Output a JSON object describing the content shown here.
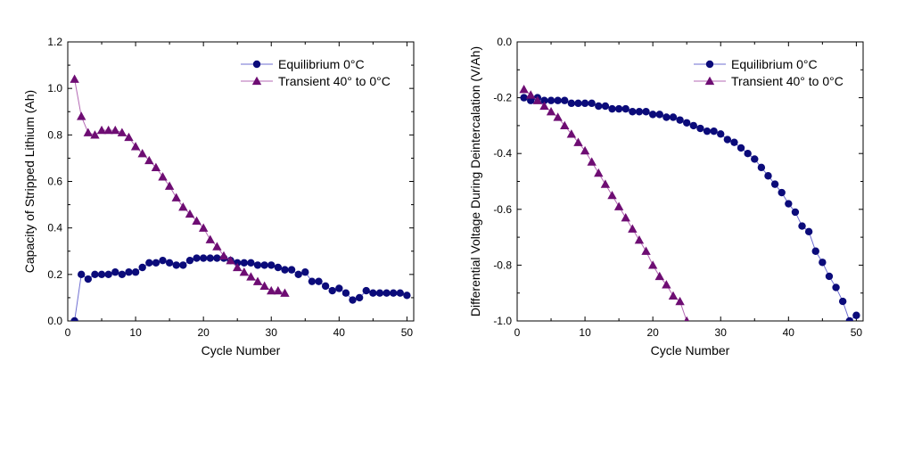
{
  "colors": {
    "equilibrium_line": "#6f6fd2",
    "equilibrium_marker": "#0b0b7a",
    "transient_line": "#b46ab4",
    "transient_marker": "#6e0d73"
  },
  "chart_data": [
    {
      "type": "line",
      "xlabel": "Cycle Number",
      "ylabel": "Capacity of Stripped Lithium (Ah)",
      "xlim": [
        0,
        51
      ],
      "ylim": [
        0.0,
        1.2
      ],
      "xticks": [
        0,
        10,
        20,
        30,
        40,
        50
      ],
      "xtick_labels": [
        "0",
        "10",
        "20",
        "30",
        "40",
        "50"
      ],
      "yticks": [
        0.0,
        0.2,
        0.4,
        0.6,
        0.8,
        1.0,
        1.2
      ],
      "ytick_labels": [
        "0.0",
        "0.2",
        "0.4",
        "0.6",
        "0.8",
        "1.0",
        "1.2"
      ],
      "grid": false,
      "legend_position": "top-right",
      "series": [
        {
          "name": "Equilibrium 0°C",
          "marker": "circle",
          "x": [
            1,
            2,
            3,
            4,
            5,
            6,
            7,
            8,
            9,
            10,
            11,
            12,
            13,
            14,
            15,
            16,
            17,
            18,
            19,
            20,
            21,
            22,
            23,
            24,
            25,
            26,
            27,
            28,
            29,
            30,
            31,
            32,
            33,
            34,
            35,
            36,
            37,
            38,
            39,
            40,
            41,
            42,
            43,
            44,
            45,
            46,
            47,
            48,
            49,
            50
          ],
          "y": [
            0.0,
            0.2,
            0.18,
            0.2,
            0.2,
            0.2,
            0.21,
            0.2,
            0.21,
            0.21,
            0.23,
            0.25,
            0.25,
            0.26,
            0.25,
            0.24,
            0.24,
            0.26,
            0.27,
            0.27,
            0.27,
            0.27,
            0.27,
            0.26,
            0.25,
            0.25,
            0.25,
            0.24,
            0.24,
            0.24,
            0.23,
            0.22,
            0.22,
            0.2,
            0.21,
            0.17,
            0.17,
            0.15,
            0.13,
            0.14,
            0.12,
            0.09,
            0.1,
            0.13,
            0.12,
            0.12,
            0.12,
            0.12,
            0.12,
            0.11
          ]
        },
        {
          "name": "Transient 40° to 0°C",
          "marker": "triangle",
          "x": [
            1,
            2,
            3,
            4,
            5,
            6,
            7,
            8,
            9,
            10,
            11,
            12,
            13,
            14,
            15,
            16,
            17,
            18,
            19,
            20,
            21,
            22,
            23,
            24,
            25,
            26,
            27,
            28,
            29,
            30,
            31,
            32
          ],
          "y": [
            1.04,
            0.88,
            0.81,
            0.8,
            0.82,
            0.82,
            0.82,
            0.81,
            0.79,
            0.75,
            0.72,
            0.69,
            0.66,
            0.62,
            0.58,
            0.53,
            0.49,
            0.46,
            0.43,
            0.4,
            0.35,
            0.32,
            0.28,
            0.26,
            0.23,
            0.21,
            0.19,
            0.17,
            0.15,
            0.13,
            0.13,
            0.12
          ]
        }
      ]
    },
    {
      "type": "line",
      "xlabel": "Cycle Number",
      "ylabel": "Differential Voltage During Deintercalation (V/Ah)",
      "xlim": [
        0,
        51
      ],
      "ylim": [
        -1.0,
        0.0
      ],
      "xticks": [
        0,
        10,
        20,
        30,
        40,
        50
      ],
      "xtick_labels": [
        "0",
        "10",
        "20",
        "30",
        "40",
        "50"
      ],
      "yticks": [
        0.0,
        -0.2,
        -0.4,
        -0.6,
        -0.8,
        -1.0
      ],
      "ytick_labels": [
        "0.0",
        "-0.2",
        "-0.4",
        "-0.6",
        "-0.8",
        "-1.0"
      ],
      "grid": false,
      "legend_position": "top-right",
      "series": [
        {
          "name": "Equilibrium 0°C",
          "marker": "circle",
          "x": [
            1,
            2,
            3,
            4,
            5,
            6,
            7,
            8,
            9,
            10,
            11,
            12,
            13,
            14,
            15,
            16,
            17,
            18,
            19,
            20,
            21,
            22,
            23,
            24,
            25,
            26,
            27,
            28,
            29,
            30,
            31,
            32,
            33,
            34,
            35,
            36,
            37,
            38,
            39,
            40,
            41,
            42,
            43,
            44,
            45,
            46,
            47,
            48,
            49,
            50
          ],
          "y": [
            -0.2,
            -0.21,
            -0.2,
            -0.21,
            -0.21,
            -0.21,
            -0.21,
            -0.22,
            -0.22,
            -0.22,
            -0.22,
            -0.23,
            -0.23,
            -0.24,
            -0.24,
            -0.24,
            -0.25,
            -0.25,
            -0.25,
            -0.26,
            -0.26,
            -0.27,
            -0.27,
            -0.28,
            -0.29,
            -0.3,
            -0.31,
            -0.32,
            -0.32,
            -0.33,
            -0.35,
            -0.36,
            -0.38,
            -0.4,
            -0.42,
            -0.45,
            -0.48,
            -0.51,
            -0.54,
            -0.58,
            -0.61,
            -0.66,
            -0.68,
            -0.75,
            -0.79,
            -0.84,
            -0.88,
            -0.93,
            -1.0,
            -0.98
          ]
        },
        {
          "name": "Transient 40° to 0°C",
          "marker": "triangle",
          "x": [
            1,
            2,
            3,
            4,
            5,
            6,
            7,
            8,
            9,
            10,
            11,
            12,
            13,
            14,
            15,
            16,
            17,
            18,
            19,
            20,
            21,
            22,
            23,
            24,
            25
          ],
          "y": [
            -0.17,
            -0.19,
            -0.21,
            -0.23,
            -0.25,
            -0.27,
            -0.3,
            -0.33,
            -0.36,
            -0.39,
            -0.43,
            -0.47,
            -0.51,
            -0.55,
            -0.59,
            -0.63,
            -0.67,
            -0.71,
            -0.75,
            -0.8,
            -0.84,
            -0.87,
            -0.91,
            -0.93,
            -1.0
          ]
        }
      ]
    }
  ]
}
